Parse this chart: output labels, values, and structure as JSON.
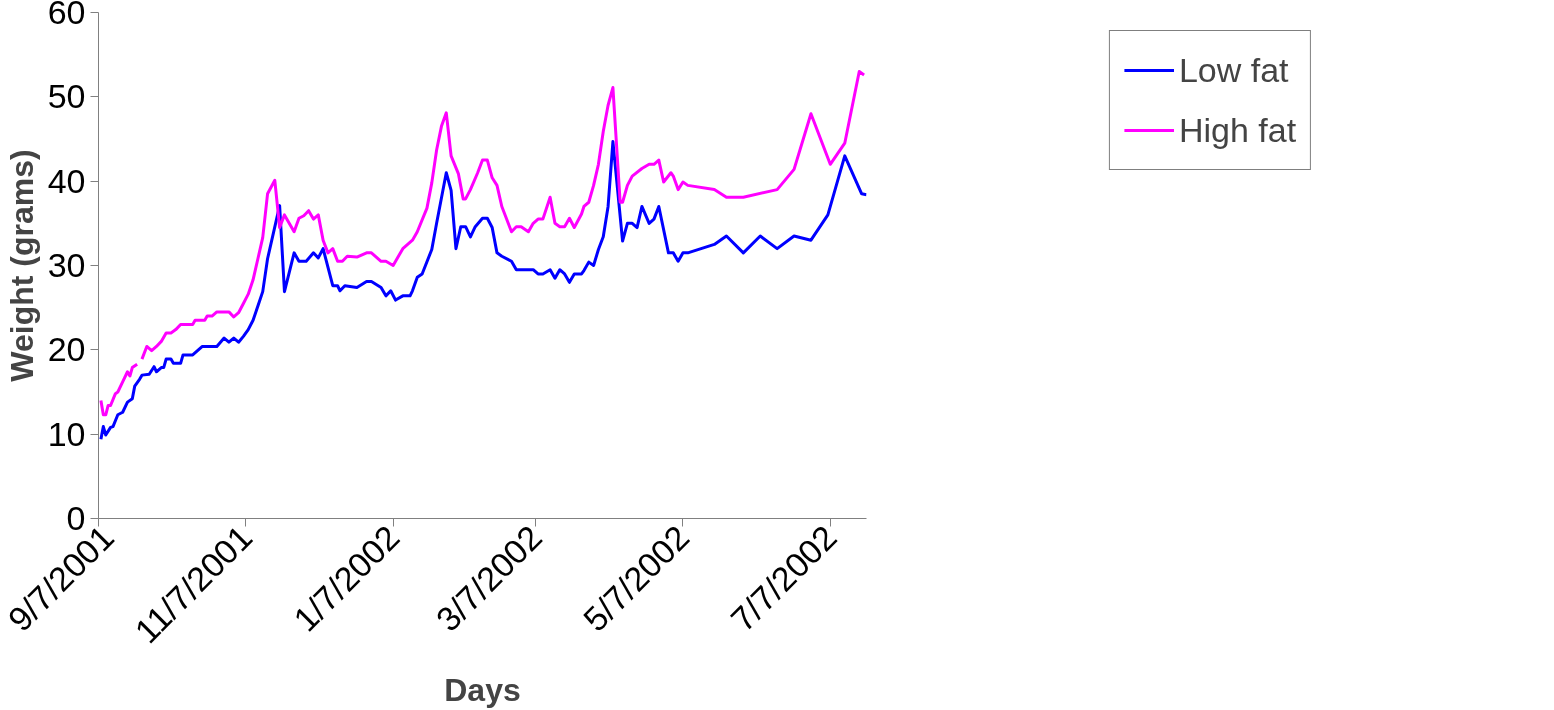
{
  "chart_data": {
    "type": "line",
    "xlabel": "Days",
    "ylabel": "Weight (grams)",
    "ylim": [
      0,
      60
    ],
    "yticks": [
      0,
      10,
      20,
      30,
      40,
      50,
      60
    ],
    "xlim": [
      "2001-09-07",
      "2002-07-22"
    ],
    "xticks": [
      {
        "value": "2001-09-07",
        "label": "9/7/2001"
      },
      {
        "value": "2001-11-07",
        "label": "11/7/2001"
      },
      {
        "value": "2002-01-07",
        "label": "1/7/2002"
      },
      {
        "value": "2002-03-07",
        "label": "3/7/2002"
      },
      {
        "value": "2002-05-07",
        "label": "5/7/2002"
      },
      {
        "value": "2002-07-07",
        "label": "7/7/2002"
      }
    ],
    "grid": false,
    "legend": "right",
    "line_style": "solid",
    "marker": "none",
    "series": [
      {
        "name": "Low fat",
        "color": "#0000ff",
        "x": [
          "2001-09-08",
          "2001-09-09",
          "2001-09-10",
          "2001-09-12",
          "2001-09-13",
          "2001-09-15",
          "2001-09-17",
          "2001-09-19",
          "2001-09-21",
          "2001-09-22",
          "2001-09-24",
          "2001-09-25",
          "2001-09-28",
          "2001-09-30",
          "2001-10-01",
          "2001-10-03",
          "2001-10-04",
          "2001-10-05",
          "2001-10-07",
          "2001-10-08",
          "2001-10-11",
          "2001-10-12",
          "2001-10-16",
          "2001-10-20",
          "2001-10-26",
          "2001-10-29",
          "2001-10-31",
          "2001-11-02",
          "2001-11-04",
          "2001-11-06",
          "2001-11-08",
          "2001-11-10",
          "2001-11-12",
          "2001-11-14",
          "2001-11-16",
          "2001-11-21",
          "2001-11-23",
          "2001-11-27",
          "2001-11-29",
          "2001-12-02",
          "2001-12-05",
          "2001-12-07",
          "2001-12-09",
          "2001-12-13",
          "2001-12-15",
          "2001-12-16",
          "2001-12-18",
          "2001-12-23",
          "2001-12-27",
          "2001-12-29",
          "2002-01-02",
          "2002-01-04",
          "2002-01-06",
          "2002-01-08",
          "2002-01-11",
          "2002-01-14",
          "2002-01-15",
          "2002-01-17",
          "2002-01-19",
          "2002-01-23",
          "2002-01-25",
          "2002-01-29",
          "2002-01-31",
          "2002-02-02",
          "2002-02-04",
          "2002-02-06",
          "2002-02-08",
          "2002-02-10",
          "2002-02-13",
          "2002-02-15",
          "2002-02-17",
          "2002-02-19",
          "2002-02-21",
          "2002-02-25",
          "2002-02-27",
          "2002-03-06",
          "2002-03-08",
          "2002-03-10",
          "2002-03-13",
          "2002-03-15",
          "2002-03-17",
          "2002-03-19",
          "2002-03-21",
          "2002-03-23",
          "2002-03-26",
          "2002-03-27",
          "2002-03-29",
          "2002-03-31",
          "2002-04-02",
          "2002-04-04",
          "2002-04-06",
          "2002-04-08",
          "2002-04-12",
          "2002-04-14",
          "2002-04-16",
          "2002-04-18",
          "2002-04-20",
          "2002-04-23",
          "2002-04-25",
          "2002-04-27",
          "2002-05-01",
          "2002-05-03",
          "2002-05-05",
          "2002-05-07",
          "2002-05-09",
          "2002-05-20",
          "2002-05-25",
          "2002-06-01",
          "2002-06-08",
          "2002-06-15",
          "2002-06-22",
          "2002-06-29",
          "2002-07-06",
          "2002-07-13",
          "2002-07-20",
          "2002-07-22"
        ],
        "values": [
          9.4,
          10.9,
          9.9,
          10.8,
          10.9,
          12.3,
          12.6,
          13.8,
          14.2,
          15.7,
          16.5,
          17.0,
          17.1,
          18.0,
          17.4,
          17.9,
          17.9,
          18.9,
          18.9,
          18.4,
          18.4,
          19.4,
          19.4,
          20.4,
          20.4,
          21.4,
          20.9,
          21.4,
          20.9,
          21.6,
          22.4,
          23.5,
          25.2,
          26.9,
          30.8,
          37.1,
          26.9,
          31.5,
          30.5,
          30.5,
          31.5,
          30.9,
          32.0,
          27.6,
          27.6,
          27.0,
          27.6,
          27.4,
          28.1,
          28.1,
          27.4,
          26.4,
          27.0,
          25.9,
          26.4,
          26.4,
          27.0,
          28.6,
          29.0,
          31.9,
          35.0,
          41.0,
          38.9,
          32.0,
          34.6,
          34.6,
          33.4,
          34.6,
          35.6,
          35.6,
          34.5,
          31.5,
          31.1,
          30.5,
          29.5,
          29.5,
          29.0,
          29.0,
          29.5,
          28.5,
          29.5,
          29.0,
          28.0,
          29.0,
          29.0,
          29.4,
          30.4,
          30.0,
          31.9,
          33.4,
          37.0,
          44.7,
          32.9,
          35.0,
          35.0,
          34.5,
          37.0,
          35.0,
          35.5,
          37.0,
          31.5,
          31.5,
          30.5,
          31.5,
          31.5,
          32.5,
          33.5,
          31.5,
          33.5,
          32.0,
          33.5,
          33.0,
          36.0,
          43.0,
          38.5,
          38.4
        ]
      },
      {
        "name": "High fat",
        "color": "#ff00ff",
        "x": [
          "2001-09-08",
          "2001-09-09",
          "2001-09-10",
          "2001-09-11",
          "2001-09-12",
          "2001-09-14",
          "2001-09-15",
          "2001-09-17",
          "2001-09-19",
          "2001-09-20",
          "2001-09-21",
          "2001-09-23",
          "2001-09-24",
          "2001-09-25",
          "2001-09-27",
          "2001-09-29",
          "2001-10-01",
          "2001-10-03",
          "2001-10-05",
          "2001-10-07",
          "2001-10-09",
          "2001-10-11",
          "2001-10-16",
          "2001-10-17",
          "2001-10-21",
          "2001-10-22",
          "2001-10-24",
          "2001-10-26",
          "2001-10-31",
          "2001-11-02",
          "2001-11-04",
          "2001-11-06",
          "2001-11-08",
          "2001-11-10",
          "2001-11-12",
          "2001-11-14",
          "2001-11-16",
          "2001-11-19",
          "2001-11-21",
          "2001-11-23",
          "2001-11-27",
          "2001-11-29",
          "2001-12-01",
          "2001-12-03",
          "2001-12-05",
          "2001-12-07",
          "2001-12-09",
          "2001-12-11",
          "2001-12-13",
          "2001-12-15",
          "2001-12-17",
          "2001-12-19",
          "2001-12-23",
          "2001-12-27",
          "2001-12-29",
          "2002-01-02",
          "2002-01-04",
          "2002-01-07",
          "2002-01-11",
          "2002-01-13",
          "2002-01-15",
          "2002-01-17",
          "2002-01-21",
          "2002-01-23",
          "2002-01-25",
          "2002-01-27",
          "2002-01-29",
          "2002-01-31",
          "2002-02-03",
          "2002-02-05",
          "2002-02-06",
          "2002-02-08",
          "2002-02-11",
          "2002-02-13",
          "2002-02-15",
          "2002-02-17",
          "2002-02-19",
          "2002-02-21",
          "2002-02-25",
          "2002-02-27",
          "2002-03-01",
          "2002-03-04",
          "2002-03-06",
          "2002-03-08",
          "2002-03-10",
          "2002-03-13",
          "2002-03-15",
          "2002-03-17",
          "2002-03-19",
          "2002-03-21",
          "2002-03-23",
          "2002-03-26",
          "2002-03-27",
          "2002-03-29",
          "2002-03-31",
          "2002-04-02",
          "2002-04-04",
          "2002-04-06",
          "2002-04-08",
          "2002-04-11",
          "2002-04-12",
          "2002-04-14",
          "2002-04-16",
          "2002-04-20",
          "2002-04-23",
          "2002-04-25",
          "2002-04-27",
          "2002-04-29",
          "2002-05-02",
          "2002-05-03",
          "2002-05-05",
          "2002-05-07",
          "2002-05-09",
          "2002-05-20",
          "2002-05-25",
          "2002-06-01",
          "2002-06-15",
          "2002-06-22",
          "2002-06-29",
          "2002-07-07",
          "2002-07-13",
          "2002-07-19",
          "2002-07-21"
        ],
        "values": [
          14.0,
          12.3,
          12.3,
          13.4,
          13.4,
          14.8,
          15.0,
          16.2,
          17.4,
          16.9,
          17.9,
          18.3,
          null,
          18.9,
          20.4,
          19.9,
          20.4,
          21.0,
          22.0,
          22.0,
          22.4,
          23.0,
          23.0,
          23.5,
          23.5,
          24.0,
          24.0,
          24.5,
          24.5,
          23.9,
          24.4,
          25.5,
          26.6,
          28.3,
          30.8,
          33.3,
          38.5,
          40.1,
          34.5,
          36.0,
          34.0,
          35.6,
          35.9,
          36.5,
          35.5,
          36.0,
          33.0,
          31.5,
          32.0,
          30.5,
          30.5,
          31.1,
          31.0,
          31.5,
          31.5,
          30.5,
          30.5,
          30.0,
          32.0,
          32.5,
          33.0,
          34.0,
          36.8,
          39.8,
          43.7,
          46.5,
          48.1,
          43.0,
          40.9,
          37.9,
          37.9,
          39.0,
          41.0,
          42.5,
          42.5,
          40.4,
          39.5,
          37.0,
          34.0,
          34.6,
          34.6,
          34.0,
          35.0,
          35.5,
          35.5,
          38.1,
          35.0,
          34.6,
          34.6,
          35.6,
          34.5,
          36.1,
          37.0,
          37.5,
          39.5,
          42.0,
          45.9,
          49.0,
          51.1,
          37.5,
          37.5,
          39.5,
          40.6,
          41.5,
          42.0,
          42.0,
          42.5,
          39.9,
          41.0,
          40.6,
          39.0,
          39.9,
          39.5,
          39.0,
          38.1,
          38.1,
          39.0,
          41.4,
          48.0,
          42.0,
          44.5,
          53.0,
          52.6
        ]
      }
    ]
  }
}
